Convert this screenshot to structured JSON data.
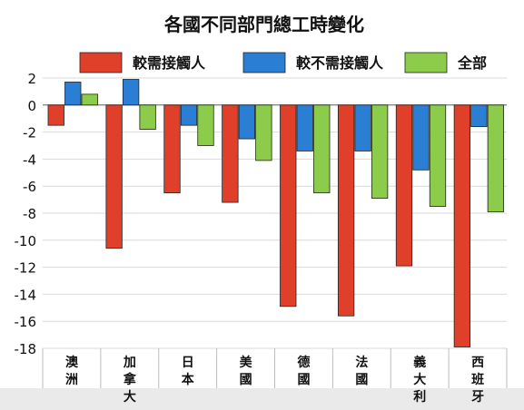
{
  "chart_data": {
    "type": "bar",
    "title": "各國不同部門總工時變化",
    "categories": [
      {
        "lines": [
          "澳",
          "洲"
        ]
      },
      {
        "lines": [
          "加",
          "拿",
          "大"
        ]
      },
      {
        "lines": [
          "日",
          "本"
        ]
      },
      {
        "lines": [
          "美",
          "國"
        ]
      },
      {
        "lines": [
          "德",
          "國"
        ]
      },
      {
        "lines": [
          "法",
          "國"
        ]
      },
      {
        "lines": [
          "義",
          "大",
          "利"
        ]
      },
      {
        "lines": [
          "西",
          "班",
          "牙"
        ]
      }
    ],
    "series": [
      {
        "name": "較需接觸人",
        "color": "#e0402a",
        "values": [
          -1.5,
          -10.6,
          -6.5,
          -7.2,
          -14.9,
          -15.6,
          -11.9,
          -17.9
        ]
      },
      {
        "name": "較不需接觸人",
        "color": "#2a7fd4",
        "values": [
          1.7,
          1.9,
          -1.5,
          -2.5,
          -3.4,
          -3.4,
          -4.8,
          -1.6
        ]
      },
      {
        "name": "全部",
        "color": "#8ccc4a",
        "values": [
          0.8,
          -1.8,
          -3.0,
          -4.1,
          -6.5,
          -6.9,
          -7.5,
          -7.9
        ]
      }
    ],
    "ylim": [
      -18,
      2
    ],
    "yticks": [
      2,
      0,
      -2,
      -4,
      -6,
      -8,
      -10,
      -12,
      -14,
      -16,
      -18
    ],
    "grid": true,
    "legend_position": "top"
  }
}
